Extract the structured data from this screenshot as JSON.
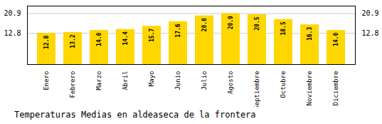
{
  "chart_data": {
    "type": "bar",
    "title": "Temperaturas Medias en aldeaseca de la frontera",
    "categories": [
      "Enero",
      "Febrero",
      "Marzo",
      "Abril",
      "Mayo",
      "Junio",
      "Julio",
      "Agosto",
      "Septiembre",
      "Octubre",
      "Noviembre",
      "Diciembre"
    ],
    "values": [
      12.8,
      13.2,
      14.0,
      14.4,
      15.7,
      17.6,
      20.0,
      20.9,
      20.5,
      18.5,
      16.3,
      14.0
    ],
    "value_labels": [
      "12.8",
      "13.2",
      "14.0",
      "14.4",
      "15.7",
      "17.6",
      "20.0",
      "20.9",
      "20.5",
      "18.5",
      "16.3",
      "14.0"
    ],
    "data_labels": true,
    "color": "#FFD700",
    "ylim": [
      0,
      24.0
    ],
    "yticks": [
      12.8,
      20.9
    ],
    "grid": true
  }
}
